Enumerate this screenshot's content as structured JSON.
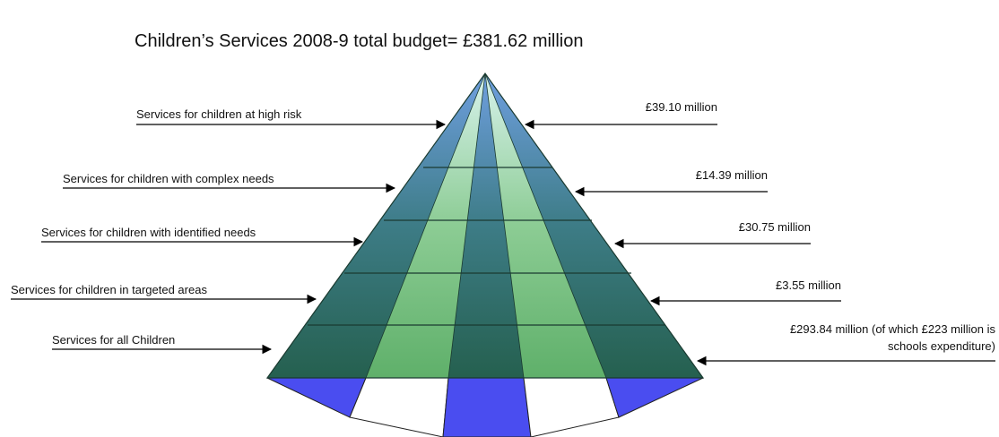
{
  "title": "Children’s Services 2008-9 total budget= £381.62 million",
  "tiers": [
    {
      "name": "Services for children at high risk",
      "amount": "£39.10 million",
      "amount_note": ""
    },
    {
      "name": "Services for children with complex needs",
      "amount": "£14.39 million",
      "amount_note": ""
    },
    {
      "name": "Services for children with identified needs",
      "amount": "£30.75 million",
      "amount_note": ""
    },
    {
      "name": "Services for children in targeted areas",
      "amount": "£3.55 million",
      "amount_note": ""
    },
    {
      "name": "Services for all Children",
      "amount": "£293.84 million (of which £223 million is",
      "amount_note": "schools expenditure)"
    }
  ],
  "colors": {
    "dark_band": "#2f6a5e",
    "light_band": "#6fb47a",
    "outline": "#1a3a30",
    "base_blue": "#4a4df0",
    "text": "#111111"
  }
}
